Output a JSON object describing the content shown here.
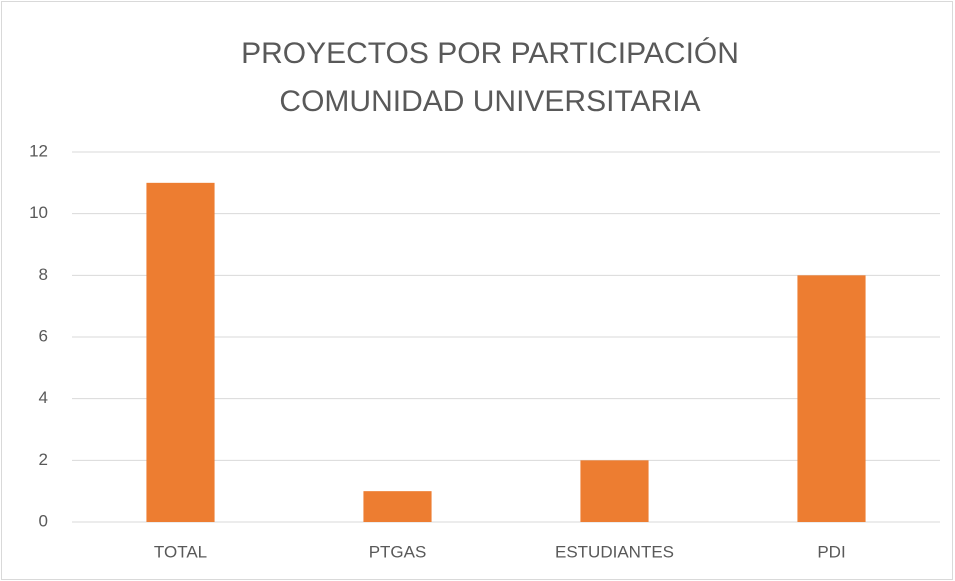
{
  "chart_data": {
    "type": "bar",
    "title": "PROYECTOS POR PARTICIPACIÓN COMUNIDAD UNIVERSITARIA",
    "categories": [
      "TOTAL",
      "PTGAS",
      "ESTUDIANTES",
      "PDI"
    ],
    "values": [
      11,
      1,
      2,
      8
    ],
    "color": "#ed7d31",
    "ylim": [
      0,
      12
    ],
    "yticks": [
      0,
      2,
      4,
      6,
      8,
      10,
      12
    ],
    "grid": true
  }
}
